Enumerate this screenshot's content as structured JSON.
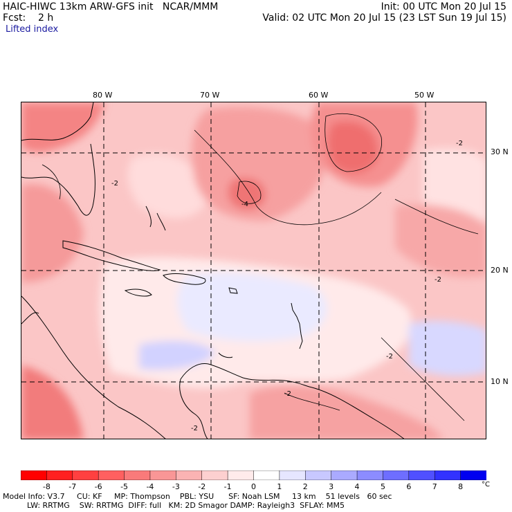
{
  "header": {
    "line1_left": "HAIC-HIWC 13km ARW-GFS init   NCAR/MMM",
    "line1_right": "Init: 00 UTC Mon 20 Jul 15",
    "line2_left": "Fcst:    2 h",
    "line2_right": "Valid: 02 UTC Mon 20 Jul 15 (23 LST Sun 19 Jul 15)",
    "field_name": "Lifted index"
  },
  "map": {
    "lon_labels": [
      "80 W",
      "70 W",
      "60 W",
      "50 W"
    ],
    "lat_labels": [
      "30 N",
      "20 N",
      "10 N"
    ],
    "contour_labels": [
      "-2",
      "-2",
      "-4",
      "-2",
      "-2",
      "-2",
      "-2"
    ]
  },
  "colorbar": {
    "ticks": [
      "-8",
      "-7",
      "-6",
      "-5",
      "-4",
      "-3",
      "-2",
      "-1",
      "0",
      "1",
      "2",
      "3",
      "4",
      "5",
      "6",
      "7",
      "8"
    ],
    "unit": "°C",
    "colors": [
      "#ff0000",
      "#ff2020",
      "#ff4040",
      "#ff6060",
      "#f97a7a",
      "#f99696",
      "#fbb3b3",
      "#fdd0d0",
      "#ffebeb",
      "#ffffff",
      "#e6e6ff",
      "#c8c8ff",
      "#aaaaff",
      "#8c8cff",
      "#6e6eff",
      "#5050ff",
      "#3232ff",
      "#0000f0"
    ]
  },
  "footer": {
    "line1": "Model Info: V3.7     CU: KF     MP: Thompson    PBL: YSU      SF: Noah LSM     13 km    51 levels   60 sec",
    "line2": "          LW: RRTMG    SW: RRTMG  DIFF: full   KM: 2D Smagor DAMP: Rayleigh3  SFLAY: MM5"
  }
}
